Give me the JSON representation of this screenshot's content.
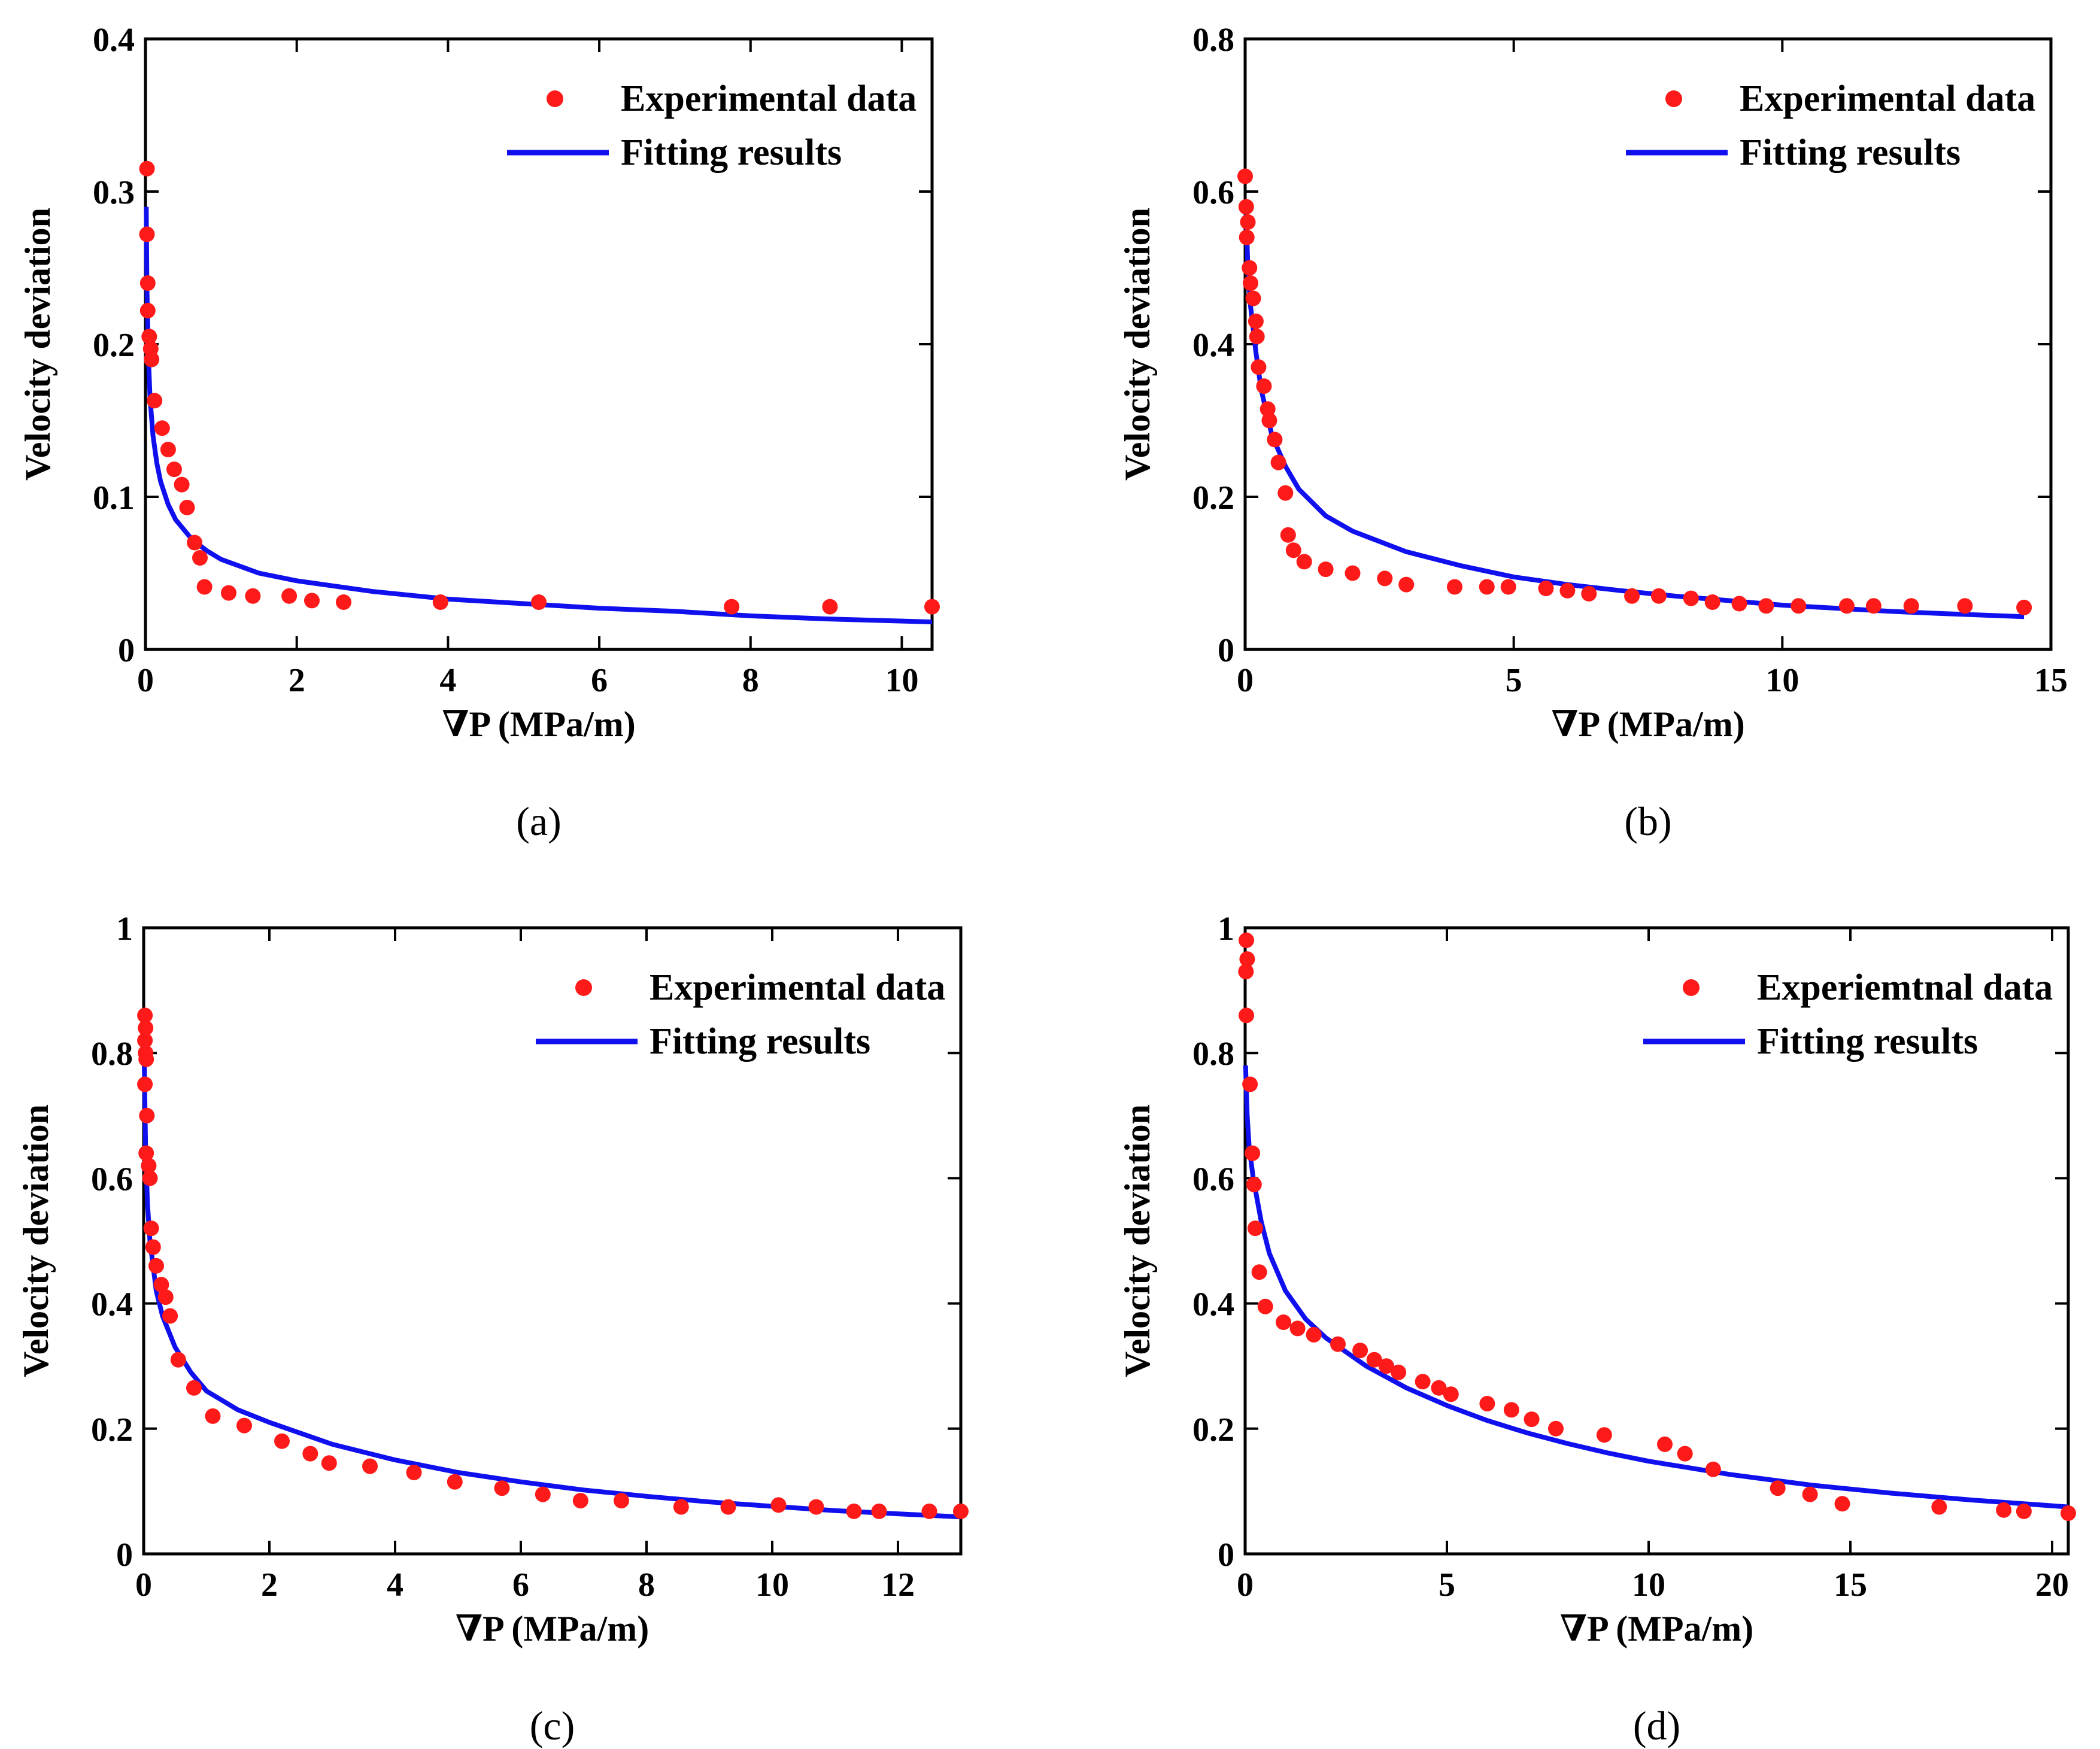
{
  "colors": {
    "experimental": "#ff1a1a",
    "fitting": "#1010ee",
    "axes": "#000000"
  },
  "chart_data": [
    {
      "id": "a",
      "panel_label": "(a)",
      "type": "scatter",
      "xlabel": "∇P (MPa/m)",
      "ylabel": "Velocity deviation",
      "xlim": [
        0,
        10.4
      ],
      "ylim": [
        0,
        0.4
      ],
      "xticks": [
        0,
        2,
        4,
        6,
        8,
        10
      ],
      "xtick_labels": [
        "0",
        "2",
        "4",
        "6",
        "8",
        "10"
      ],
      "yticks": [
        0,
        0.1,
        0.2,
        0.3,
        0.4
      ],
      "ytick_labels": [
        "0",
        "0.1",
        "0.2",
        "0.3",
        "0.4"
      ],
      "legend_position": "top-right",
      "legend": [
        "Experimental data",
        "Fitting results"
      ],
      "series": [
        {
          "name": "Experimental data",
          "kind": "markers",
          "points": [
            [
              0.02,
              0.315
            ],
            [
              0.02,
              0.272
            ],
            [
              0.03,
              0.24
            ],
            [
              0.03,
              0.222
            ],
            [
              0.05,
              0.205
            ],
            [
              0.07,
              0.197
            ],
            [
              0.08,
              0.19
            ],
            [
              0.12,
              0.163
            ],
            [
              0.22,
              0.145
            ],
            [
              0.3,
              0.131
            ],
            [
              0.38,
              0.118
            ],
            [
              0.48,
              0.108
            ],
            [
              0.55,
              0.093
            ],
            [
              0.65,
              0.07
            ],
            [
              0.72,
              0.06
            ],
            [
              0.78,
              0.041
            ],
            [
              1.1,
              0.037
            ],
            [
              1.42,
              0.035
            ],
            [
              1.9,
              0.035
            ],
            [
              2.2,
              0.032
            ],
            [
              2.62,
              0.031
            ],
            [
              3.9,
              0.031
            ],
            [
              5.2,
              0.031
            ],
            [
              7.75,
              0.028
            ],
            [
              9.05,
              0.028
            ],
            [
              10.4,
              0.028
            ]
          ]
        },
        {
          "name": "Fitting results",
          "kind": "line",
          "points": [
            [
              0.01,
              0.29
            ],
            [
              0.02,
              0.235
            ],
            [
              0.04,
              0.19
            ],
            [
              0.06,
              0.165
            ],
            [
              0.1,
              0.14
            ],
            [
              0.15,
              0.122
            ],
            [
              0.2,
              0.11
            ],
            [
              0.3,
              0.095
            ],
            [
              0.4,
              0.085
            ],
            [
              0.6,
              0.073
            ],
            [
              0.8,
              0.065
            ],
            [
              1,
              0.059
            ],
            [
              1.5,
              0.05
            ],
            [
              2,
              0.045
            ],
            [
              3,
              0.038
            ],
            [
              4,
              0.033
            ],
            [
              5,
              0.03
            ],
            [
              6,
              0.027
            ],
            [
              7,
              0.025
            ],
            [
              8,
              0.022
            ],
            [
              9,
              0.02
            ],
            [
              10.4,
              0.018
            ]
          ]
        }
      ]
    },
    {
      "id": "b",
      "panel_label": "(b)",
      "type": "scatter",
      "xlabel": "∇P (MPa/m)",
      "ylabel": "Velocity deviation",
      "xlim": [
        0,
        15
      ],
      "ylim": [
        0,
        0.8
      ],
      "xticks": [
        0,
        5,
        10,
        15
      ],
      "xtick_labels": [
        "0",
        "5",
        "10",
        "15"
      ],
      "yticks": [
        0,
        0.2,
        0.4,
        0.6,
        0.8
      ],
      "ytick_labels": [
        "0",
        "0.2",
        "0.4",
        "0.6",
        "0.8"
      ],
      "legend_position": "top-right",
      "legend": [
        "Experimental data",
        "Fitting results"
      ],
      "series": [
        {
          "name": "Experimental data",
          "kind": "markers",
          "points": [
            [
              0.0,
              0.62
            ],
            [
              0.02,
              0.58
            ],
            [
              0.05,
              0.56
            ],
            [
              0.03,
              0.54
            ],
            [
              0.08,
              0.5
            ],
            [
              0.1,
              0.48
            ],
            [
              0.15,
              0.46
            ],
            [
              0.2,
              0.43
            ],
            [
              0.22,
              0.41
            ],
            [
              0.25,
              0.37
            ],
            [
              0.35,
              0.345
            ],
            [
              0.42,
              0.315
            ],
            [
              0.45,
              0.3
            ],
            [
              0.55,
              0.275
            ],
            [
              0.62,
              0.245
            ],
            [
              0.75,
              0.205
            ],
            [
              0.8,
              0.15
            ],
            [
              0.9,
              0.13
            ],
            [
              1.1,
              0.115
            ],
            [
              1.5,
              0.105
            ],
            [
              2.0,
              0.1
            ],
            [
              2.6,
              0.093
            ],
            [
              3.0,
              0.085
            ],
            [
              3.9,
              0.082
            ],
            [
              4.5,
              0.082
            ],
            [
              4.9,
              0.082
            ],
            [
              5.6,
              0.08
            ],
            [
              6.0,
              0.077
            ],
            [
              6.4,
              0.073
            ],
            [
              7.2,
              0.07
            ],
            [
              7.7,
              0.07
            ],
            [
              8.3,
              0.067
            ],
            [
              8.7,
              0.062
            ],
            [
              9.2,
              0.06
            ],
            [
              9.7,
              0.057
            ],
            [
              10.3,
              0.057
            ],
            [
              11.2,
              0.057
            ],
            [
              11.7,
              0.057
            ],
            [
              12.4,
              0.057
            ],
            [
              13.4,
              0.057
            ],
            [
              14.5,
              0.055
            ]
          ]
        },
        {
          "name": "Fitting results",
          "kind": "line",
          "points": [
            [
              0.02,
              0.57
            ],
            [
              0.05,
              0.5
            ],
            [
              0.1,
              0.45
            ],
            [
              0.2,
              0.39
            ],
            [
              0.3,
              0.34
            ],
            [
              0.5,
              0.28
            ],
            [
              0.75,
              0.24
            ],
            [
              1.0,
              0.21
            ],
            [
              1.5,
              0.175
            ],
            [
              2.0,
              0.155
            ],
            [
              3.0,
              0.128
            ],
            [
              4.0,
              0.11
            ],
            [
              5.0,
              0.095
            ],
            [
              6.0,
              0.085
            ],
            [
              7.0,
              0.077
            ],
            [
              8.0,
              0.07
            ],
            [
              9.0,
              0.064
            ],
            [
              10.0,
              0.058
            ],
            [
              11.0,
              0.054
            ],
            [
              12.0,
              0.05
            ],
            [
              13.0,
              0.047
            ],
            [
              14.5,
              0.043
            ]
          ]
        }
      ]
    },
    {
      "id": "c",
      "panel_label": "(c)",
      "type": "scatter",
      "xlabel": "∇P (MPa/m)",
      "ylabel": "Velocity deviation",
      "xlim": [
        0,
        13
      ],
      "ylim": [
        0,
        1
      ],
      "xticks": [
        0,
        2,
        4,
        6,
        8,
        10,
        12
      ],
      "xtick_labels": [
        "0",
        "2",
        "4",
        "6",
        "8",
        "10",
        "12"
      ],
      "yticks": [
        0,
        0.2,
        0.4,
        0.6,
        0.8,
        1
      ],
      "ytick_labels": [
        "0",
        "0.2",
        "0.4",
        "0.6",
        "0.8",
        "1"
      ],
      "legend_position": "top-right",
      "legend": [
        "Experimental data",
        "Fitting results"
      ],
      "series": [
        {
          "name": "Experimental data",
          "kind": "markers",
          "points": [
            [
              0.02,
              0.86
            ],
            [
              0.03,
              0.84
            ],
            [
              0.02,
              0.82
            ],
            [
              0.03,
              0.8
            ],
            [
              0.04,
              0.79
            ],
            [
              0.02,
              0.75
            ],
            [
              0.05,
              0.7
            ],
            [
              0.04,
              0.64
            ],
            [
              0.08,
              0.62
            ],
            [
              0.1,
              0.6
            ],
            [
              0.12,
              0.52
            ],
            [
              0.15,
              0.49
            ],
            [
              0.2,
              0.46
            ],
            [
              0.28,
              0.43
            ],
            [
              0.35,
              0.41
            ],
            [
              0.42,
              0.38
            ],
            [
              0.55,
              0.31
            ],
            [
              0.8,
              0.265
            ],
            [
              1.1,
              0.22
            ],
            [
              1.6,
              0.205
            ],
            [
              2.2,
              0.18
            ],
            [
              2.65,
              0.16
            ],
            [
              2.95,
              0.145
            ],
            [
              3.6,
              0.14
            ],
            [
              4.3,
              0.13
            ],
            [
              4.95,
              0.115
            ],
            [
              5.7,
              0.105
            ],
            [
              6.35,
              0.095
            ],
            [
              6.95,
              0.085
            ],
            [
              7.6,
              0.085
            ],
            [
              8.55,
              0.075
            ],
            [
              9.3,
              0.075
            ],
            [
              10.1,
              0.078
            ],
            [
              10.7,
              0.075
            ],
            [
              11.3,
              0.068
            ],
            [
              11.7,
              0.068
            ],
            [
              12.5,
              0.068
            ],
            [
              13.0,
              0.068
            ]
          ]
        },
        {
          "name": "Fitting results",
          "kind": "line",
          "points": [
            [
              0.01,
              0.78
            ],
            [
              0.03,
              0.65
            ],
            [
              0.06,
              0.56
            ],
            [
              0.1,
              0.5
            ],
            [
              0.2,
              0.42
            ],
            [
              0.3,
              0.38
            ],
            [
              0.5,
              0.33
            ],
            [
              0.75,
              0.29
            ],
            [
              1.0,
              0.26
            ],
            [
              1.5,
              0.23
            ],
            [
              2.0,
              0.21
            ],
            [
              3.0,
              0.175
            ],
            [
              4.0,
              0.15
            ],
            [
              5.0,
              0.13
            ],
            [
              6.0,
              0.115
            ],
            [
              7.0,
              0.102
            ],
            [
              8.0,
              0.092
            ],
            [
              9.0,
              0.083
            ],
            [
              10.0,
              0.076
            ],
            [
              11.0,
              0.069
            ],
            [
              12.0,
              0.064
            ],
            [
              13.0,
              0.059
            ]
          ]
        }
      ]
    },
    {
      "id": "d",
      "panel_label": "(d)",
      "type": "scatter",
      "xlabel": "∇P (MPa/m)",
      "ylabel": "Velocity deviation",
      "xlim": [
        0,
        20.4
      ],
      "ylim": [
        0,
        1
      ],
      "xticks": [
        0,
        5,
        10,
        15,
        20
      ],
      "xtick_labels": [
        "0",
        "5",
        "10",
        "15",
        "20"
      ],
      "yticks": [
        0,
        0.2,
        0.4,
        0.6,
        0.8,
        1
      ],
      "ytick_labels": [
        "0",
        "0.2",
        "0.4",
        "0.6",
        "0.8",
        "1"
      ],
      "legend_position": "top-right",
      "legend": [
        "Experiemtnal data",
        "Fitting results"
      ],
      "series": [
        {
          "name": "Experiemtnal data",
          "kind": "markers",
          "points": [
            [
              0.03,
              0.98
            ],
            [
              0.05,
              0.95
            ],
            [
              0.02,
              0.93
            ],
            [
              0.03,
              0.86
            ],
            [
              0.12,
              0.75
            ],
            [
              0.18,
              0.64
            ],
            [
              0.22,
              0.59
            ],
            [
              0.25,
              0.52
            ],
            [
              0.35,
              0.45
            ],
            [
              0.5,
              0.395
            ],
            [
              0.95,
              0.37
            ],
            [
              1.3,
              0.36
            ],
            [
              1.7,
              0.35
            ],
            [
              2.3,
              0.335
            ],
            [
              2.85,
              0.325
            ],
            [
              3.2,
              0.31
            ],
            [
              3.5,
              0.3
            ],
            [
              3.8,
              0.29
            ],
            [
              4.4,
              0.275
            ],
            [
              4.8,
              0.265
            ],
            [
              5.1,
              0.255
            ],
            [
              6.0,
              0.24
            ],
            [
              6.6,
              0.23
            ],
            [
              7.1,
              0.215
            ],
            [
              7.7,
              0.2
            ],
            [
              8.9,
              0.19
            ],
            [
              10.4,
              0.175
            ],
            [
              10.9,
              0.16
            ],
            [
              11.6,
              0.135
            ],
            [
              13.2,
              0.105
            ],
            [
              14.0,
              0.095
            ],
            [
              14.8,
              0.08
            ],
            [
              17.2,
              0.075
            ],
            [
              18.8,
              0.07
            ],
            [
              19.3,
              0.068
            ],
            [
              20.4,
              0.065
            ]
          ]
        },
        {
          "name": "Fitting results",
          "kind": "line",
          "points": [
            [
              0.01,
              0.78
            ],
            [
              0.05,
              0.7
            ],
            [
              0.1,
              0.65
            ],
            [
              0.2,
              0.6
            ],
            [
              0.4,
              0.53
            ],
            [
              0.6,
              0.48
            ],
            [
              0.8,
              0.45
            ],
            [
              1.0,
              0.42
            ],
            [
              1.5,
              0.375
            ],
            [
              2.0,
              0.345
            ],
            [
              3.0,
              0.3
            ],
            [
              4.0,
              0.265
            ],
            [
              5.0,
              0.237
            ],
            [
              6.0,
              0.213
            ],
            [
              7.0,
              0.193
            ],
            [
              8.0,
              0.176
            ],
            [
              9.0,
              0.161
            ],
            [
              10.0,
              0.148
            ],
            [
              12.0,
              0.127
            ],
            [
              14.0,
              0.11
            ],
            [
              16.0,
              0.097
            ],
            [
              18.0,
              0.086
            ],
            [
              20.4,
              0.075
            ]
          ]
        }
      ]
    }
  ]
}
